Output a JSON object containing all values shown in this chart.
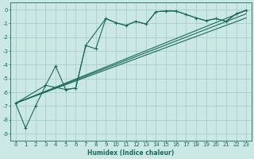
{
  "xlabel": "Humidex (Indice chaleur)",
  "bg_color": "#cce8e4",
  "grid_color": "#aad0cc",
  "line_color": "#1a6b5a",
  "xlim": [
    -0.5,
    23.5
  ],
  "ylim": [
    -9.5,
    0.5
  ],
  "yticks": [
    0,
    -1,
    -2,
    -3,
    -4,
    -5,
    -6,
    -7,
    -8,
    -9
  ],
  "xticks": [
    0,
    1,
    2,
    3,
    4,
    5,
    6,
    7,
    8,
    9,
    10,
    11,
    12,
    13,
    14,
    15,
    16,
    17,
    18,
    19,
    20,
    21,
    22,
    23
  ],
  "line1_x": [
    0,
    1,
    2,
    3,
    4,
    5,
    6,
    7,
    8,
    9,
    10,
    11,
    12,
    13,
    14,
    15,
    16,
    17,
    18,
    19,
    20,
    21,
    22,
    23
  ],
  "line1_y": [
    -6.8,
    -8.6,
    -7.0,
    -5.5,
    -4.1,
    -5.8,
    -5.7,
    -2.6,
    -2.85,
    -0.65,
    -0.95,
    -1.15,
    -0.85,
    -1.05,
    -0.15,
    -0.1,
    -0.1,
    -0.35,
    -0.6,
    -0.8,
    -0.65,
    -0.85,
    -0.3,
    -0.05
  ],
  "line2_x": [
    0,
    3,
    5,
    6,
    7,
    9,
    10,
    11,
    12,
    13,
    14,
    15,
    16,
    17,
    18,
    19,
    20,
    21,
    22,
    23
  ],
  "line2_y": [
    -6.8,
    -5.5,
    -5.8,
    -5.7,
    -2.6,
    -0.65,
    -0.95,
    -1.15,
    -0.85,
    -1.05,
    -0.15,
    -0.1,
    -0.1,
    -0.35,
    -0.6,
    -0.8,
    -0.65,
    -0.85,
    -0.3,
    -0.05
  ],
  "line3_x": [
    0,
    23
  ],
  "line3_y": [
    -6.8,
    -0.05
  ],
  "line4_x": [
    0,
    23
  ],
  "line4_y": [
    -6.8,
    -0.3
  ],
  "line5_x": [
    0,
    23
  ],
  "line5_y": [
    -6.8,
    -0.6
  ]
}
